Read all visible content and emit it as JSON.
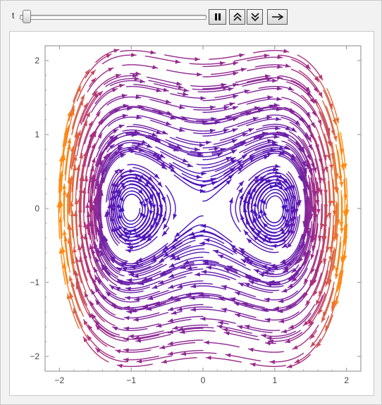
{
  "controls": {
    "slider": {
      "label": "t",
      "value": 0.02
    },
    "buttons": [
      {
        "name": "pause-button",
        "icon": "pause-icon"
      },
      {
        "name": "faster-button",
        "icon": "double-chevron-up-icon"
      },
      {
        "name": "slower-button",
        "icon": "double-chevron-down-icon"
      },
      {
        "name": "direction-button",
        "icon": "right-arrow-icon"
      }
    ]
  },
  "chart_data": {
    "type": "streamplot",
    "title": "",
    "xlabel": "",
    "ylabel": "",
    "xlim": [
      -2.2,
      2.2
    ],
    "ylim": [
      -2.2,
      2.2
    ],
    "xticks": [
      "−2",
      "−1",
      "0",
      "1",
      "2"
    ],
    "yticks": [
      "−2",
      "−1",
      "0",
      "1",
      "2"
    ],
    "x_tick_values": [
      -2,
      -1,
      0,
      1,
      2
    ],
    "y_tick_values": [
      -2,
      -1,
      0,
      1,
      2
    ],
    "field": {
      "dx": "y",
      "dy": "x - x^3"
    },
    "centers": [
      [
        -1,
        0
      ],
      [
        1,
        0
      ]
    ],
    "saddle": [
      0,
      0
    ],
    "color_scale": {
      "low": "#3b10c8",
      "mid": "#b0307a",
      "high": "#ff8a10"
    },
    "grid": false
  }
}
